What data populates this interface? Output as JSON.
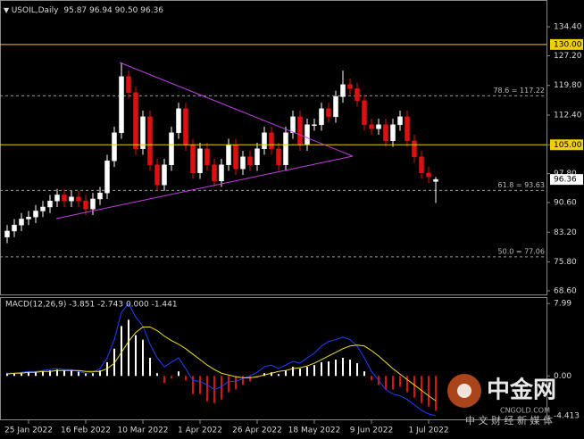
{
  "chart_data": [
    {
      "type": "candlestick",
      "title": "USOIL,Daily",
      "ohlc_text": "95.87 96.94 90.50 96.36",
      "categories": [
        null,
        null,
        null,
        "25 Jan 2022",
        null,
        null,
        null,
        null,
        null,
        null,
        null,
        "16 Feb 2022",
        null,
        null,
        null,
        null,
        null,
        null,
        null,
        "10 Mar 2022",
        null,
        null,
        null,
        null,
        null,
        null,
        null,
        "1 Apr 2022",
        null,
        null,
        null,
        null,
        null,
        null,
        null,
        "26 Apr 2022",
        null,
        null,
        null,
        null,
        null,
        null,
        null,
        "18 May 2022",
        null,
        null,
        null,
        null,
        null,
        null,
        null,
        "9 Jun 2022",
        null,
        null,
        null,
        null,
        null,
        null,
        null,
        "1 Jul 2022",
        null
      ],
      "open": [
        82,
        83.5,
        85,
        86.5,
        87,
        88.5,
        89.5,
        91,
        92.5,
        91,
        92,
        91,
        89,
        91.5,
        93,
        101,
        108,
        122,
        118,
        104,
        112,
        100,
        95,
        100,
        108,
        114,
        105,
        98,
        104,
        100,
        96,
        100,
        105,
        99,
        102,
        100,
        104,
        108,
        104,
        100,
        108,
        112,
        105,
        110,
        110,
        114,
        112,
        117,
        120,
        119,
        116,
        110,
        109,
        110,
        106,
        110,
        112,
        106,
        102,
        98,
        95.87
      ],
      "high": [
        85,
        86.5,
        88,
        88.5,
        90,
        91,
        92.5,
        94,
        94,
        93.5,
        93.5,
        92.5,
        93,
        94.5,
        102.5,
        109.5,
        125.5,
        123.5,
        119.5,
        113.5,
        113.5,
        101.5,
        101.5,
        109.5,
        115.5,
        115.5,
        106.5,
        105.5,
        105.5,
        101.5,
        101.5,
        106.5,
        106.5,
        103.5,
        103.5,
        105.5,
        109.5,
        109.5,
        105.5,
        109.5,
        113.5,
        113.5,
        111.5,
        111.5,
        115.5,
        115.5,
        118.5,
        123.5,
        121.5,
        120.5,
        117.5,
        111.5,
        111.5,
        111.5,
        111.5,
        113.5,
        113.5,
        107.5,
        103.5,
        99.5,
        96.94
      ],
      "low": [
        80.5,
        82,
        83.5,
        85,
        85.5,
        87,
        88,
        89.5,
        89.5,
        89.5,
        89.5,
        87.5,
        87.5,
        90,
        91.5,
        99.5,
        106.5,
        116.5,
        102.5,
        102.5,
        98.5,
        93.5,
        93.5,
        98.5,
        106.5,
        103.5,
        96.5,
        96.5,
        98.5,
        94.5,
        94.5,
        98.5,
        97.5,
        97.5,
        98.5,
        98.5,
        102.5,
        102.5,
        98.5,
        98.5,
        106.5,
        103.5,
        103.5,
        108.5,
        108.5,
        110.5,
        110.5,
        115.5,
        117.5,
        114.5,
        108.5,
        107.5,
        107.5,
        104.5,
        104.5,
        108.5,
        104.5,
        100.5,
        96.5,
        95.5,
        90.5
      ],
      "close": [
        83.5,
        85,
        86.5,
        87,
        88.5,
        89.5,
        91,
        92.5,
        91,
        92,
        91,
        89,
        91.5,
        93,
        101,
        108,
        122,
        118,
        104,
        112,
        100,
        95,
        100,
        108,
        114,
        105,
        98,
        104,
        100,
        96,
        100,
        105,
        99,
        102,
        100,
        104,
        108,
        104,
        100,
        108,
        112,
        105,
        110,
        110,
        114,
        112,
        117,
        120,
        119,
        116,
        110,
        109,
        110,
        106,
        110,
        112,
        106,
        102,
        98,
        97,
        96.36
      ],
      "up_color": "#ffffff",
      "down_color": "#e01010",
      "ylim": [
        67.7,
        140.2
      ],
      "yticks": [
        {
          "value": 134.4,
          "label": "134.40"
        },
        {
          "value": 127.2,
          "label": "127.20"
        },
        {
          "value": 119.8,
          "label": "119.80"
        },
        {
          "value": 112.4,
          "label": "112.40"
        },
        {
          "value": 105,
          "label": "105.00"
        },
        {
          "value": 97.8,
          "label": "97.80"
        },
        {
          "value": 90.6,
          "label": "90.60"
        },
        {
          "value": 83.2,
          "label": "83.20"
        },
        {
          "value": 75.8,
          "label": "75.80"
        },
        {
          "value": 68.6,
          "label": "68.60"
        }
      ],
      "hlines": [
        {
          "value": 130,
          "label": "130.00",
          "color": "#f0d000"
        },
        {
          "value": 105,
          "label": "105.00",
          "color": "#f0d000"
        }
      ],
      "fib_levels": [
        {
          "value": 117.22,
          "label": "78.6 = 117.22"
        },
        {
          "value": 93.63,
          "label": "61.8 = 93.63"
        },
        {
          "value": 77.06,
          "label": "50.0 = 77.06"
        }
      ],
      "last_price": 96.36
    },
    {
      "type": "macd",
      "title": "MACD(12,26,9) -3.851 -2.743 0.000 -1.441",
      "histogram": [
        0.3,
        0.3,
        0.4,
        0.4,
        0.5,
        0.5,
        0.6,
        0.7,
        0.6,
        0.6,
        0.5,
        0.3,
        0.3,
        0.6,
        1.5,
        3,
        5.5,
        6.2,
        4.5,
        4,
        2,
        0.3,
        -0.8,
        -0.3,
        0.5,
        -0.5,
        -2,
        -2,
        -2.8,
        -3,
        -2.6,
        -1.8,
        -1.5,
        -1,
        -0.6,
        -0.2,
        0.3,
        0.4,
        0.2,
        0.6,
        1,
        0.8,
        1,
        1.2,
        1.5,
        1.6,
        1.8,
        2,
        1.8,
        1.4,
        0.5,
        -0.5,
        -1,
        -1.5,
        -1.5,
        -1.2,
        -1.8,
        -2.4,
        -3,
        -3.4,
        -3.851
      ],
      "pos_color": "#ffffff",
      "neg_color": "#e01010",
      "series": [
        {
          "color": "#2040ff",
          "values": [
            0.3,
            0.3,
            0.4,
            0.5,
            0.5,
            0.6,
            0.7,
            0.8,
            0.7,
            0.7,
            0.5,
            0.3,
            0.4,
            0.8,
            2,
            4,
            7,
            8,
            6.5,
            5.5,
            3.5,
            2,
            1,
            1.5,
            2,
            0.8,
            -0.5,
            -0.6,
            -1,
            -1.5,
            -1.2,
            -0.6,
            -0.6,
            -0.3,
            0,
            0.4,
            1,
            1.2,
            0.8,
            1.2,
            1.6,
            1.4,
            2,
            2.5,
            3.3,
            3.8,
            4,
            4.3,
            4,
            3.3,
            2,
            0.5,
            -0.5,
            -1.5,
            -2,
            -2.2,
            -2.6,
            -3.2,
            -3.8,
            -4.2,
            -4.4
          ]
        },
        {
          "color": "#f0e020",
          "values": [
            0.2,
            0.3,
            0.3,
            0.4,
            0.4,
            0.5,
            0.5,
            0.6,
            0.6,
            0.6,
            0.6,
            0.5,
            0.5,
            0.5,
            0.8,
            1.4,
            2.6,
            3.8,
            4.8,
            5.4,
            5.4,
            5.0,
            4.4,
            3.9,
            3.5,
            3.0,
            2.4,
            1.8,
            1.2,
            0.7,
            0.3,
            0.1,
            -0.1,
            -0.2,
            -0.2,
            -0.1,
            0.1,
            0.3,
            0.5,
            0.6,
            0.8,
            0.9,
            1.1,
            1.4,
            1.8,
            2.2,
            2.6,
            3.0,
            3.3,
            3.4,
            3.3,
            2.8,
            2.2,
            1.5,
            0.8,
            0.2,
            -0.4,
            -1.0,
            -1.6,
            -2.2,
            -2.743
          ]
        }
      ],
      "ylim": [
        -4.8,
        8.6
      ],
      "yticks": [
        7.99,
        {
          "value": 0,
          "label": "0.00"
        },
        -4.413
      ]
    }
  ],
  "watermark": {
    "brand": "中金网",
    "site": "CNGOLD.COM",
    "slogan": "中 文 财 经 新 媒 体"
  }
}
